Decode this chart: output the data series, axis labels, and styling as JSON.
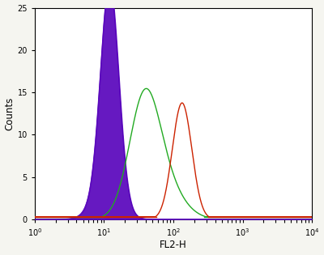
{
  "xlabel": "FL2-H",
  "ylabel": "Counts",
  "xlim_log": [
    0,
    4
  ],
  "ylim": [
    0,
    25
  ],
  "yticks": [
    0,
    5,
    10,
    15,
    20,
    25
  ],
  "background_color": "#f5f5f0",
  "plot_bg_color": "#ffffff",
  "shaded_color": "#5500bb",
  "shaded_alpha": 0.9,
  "green_color": "#22aa22",
  "red_color": "#cc2200",
  "shaded_peak_log": 1.08,
  "shaded_sigma": 0.13,
  "shaded_peak_height": 25,
  "green_peak_log": 1.58,
  "green_sigma": 0.22,
  "green_peak_height": 13.5,
  "red_peak1_log": 2.08,
  "red_peak2_log": 2.18,
  "red_sigma": 0.13,
  "red_peak_height": 8.0,
  "figsize": [
    4.0,
    3.15
  ],
  "dpi": 100,
  "font_size_ticks": 7,
  "font_size_label": 8.5
}
